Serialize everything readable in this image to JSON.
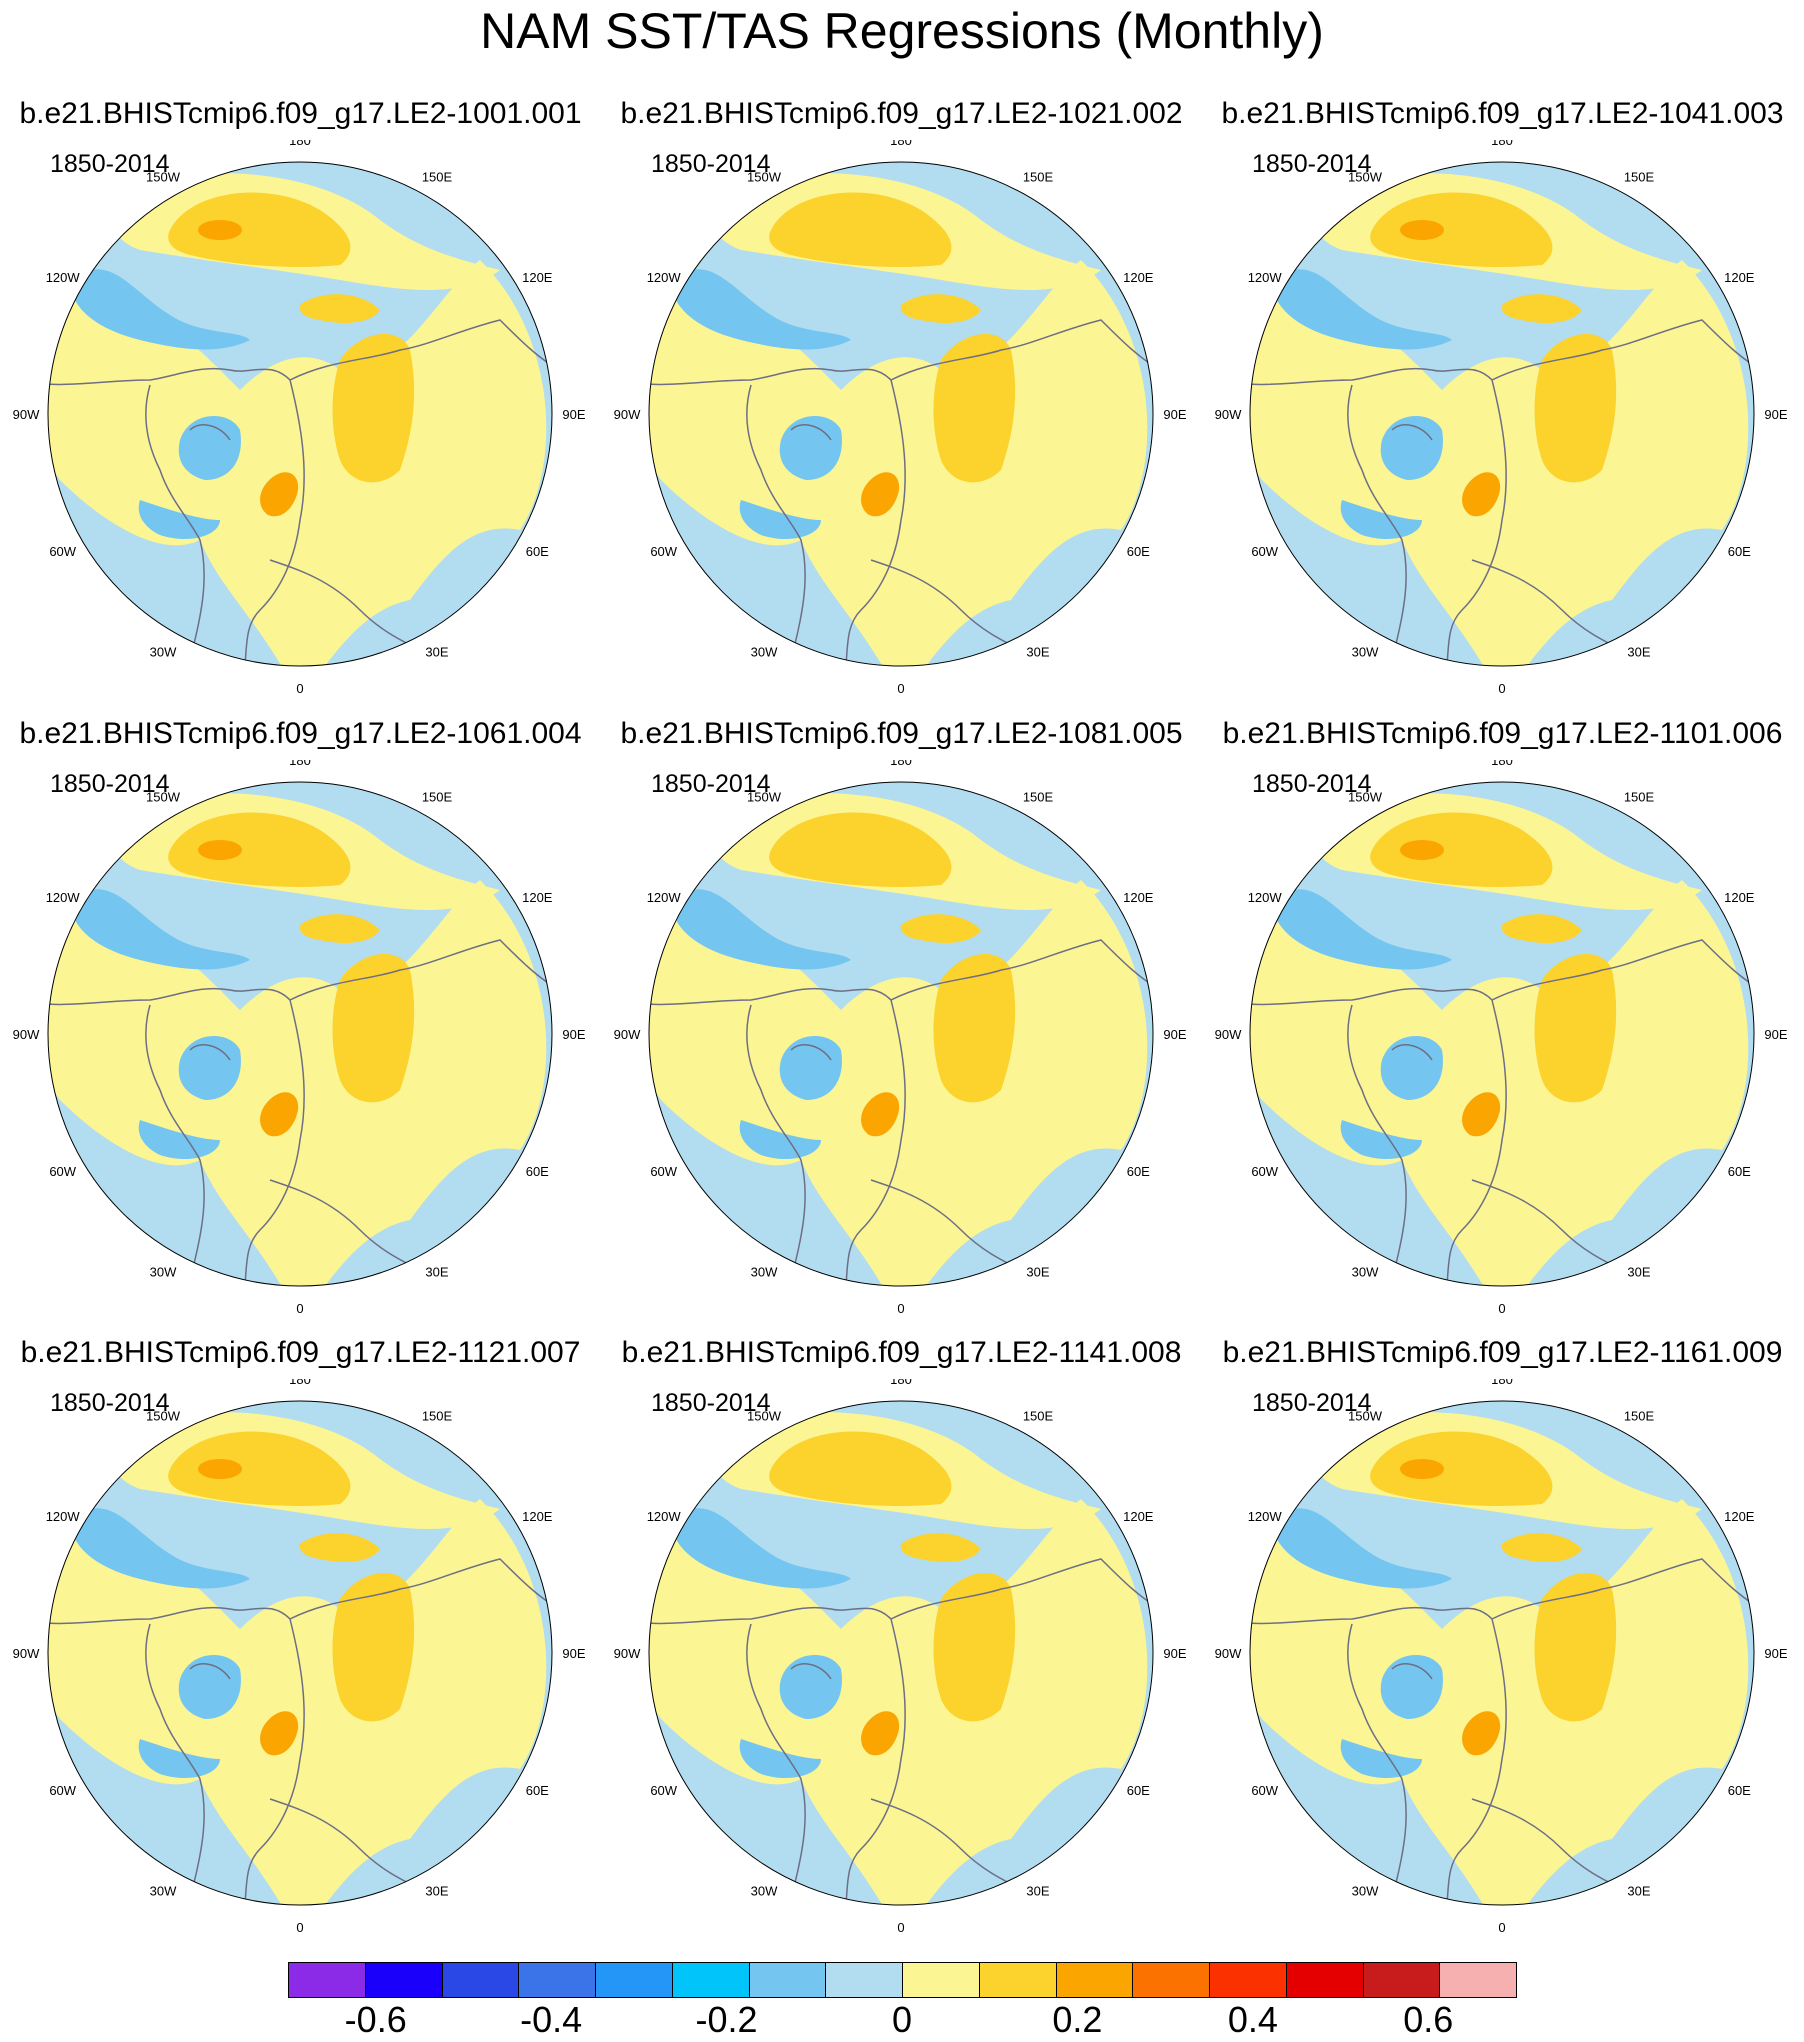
{
  "title": "NAM SST/TAS Regressions (Monthly)",
  "panels": [
    {
      "title": "b.e21.BHISTcmip6.f09_g17.LE2-1001.001",
      "period": "1850-2014"
    },
    {
      "title": "b.e21.BHISTcmip6.f09_g17.LE2-1021.002",
      "period": "1850-2014"
    },
    {
      "title": "b.e21.BHISTcmip6.f09_g17.LE2-1041.003",
      "period": "1850-2014"
    },
    {
      "title": "b.e21.BHISTcmip6.f09_g17.LE2-1061.004",
      "period": "1850-2014"
    },
    {
      "title": "b.e21.BHISTcmip6.f09_g17.LE2-1081.005",
      "period": "1850-2014"
    },
    {
      "title": "b.e21.BHISTcmip6.f09_g17.LE2-1101.006",
      "period": "1850-2014"
    },
    {
      "title": "b.e21.BHISTcmip6.f09_g17.LE2-1121.007",
      "period": "1850-2014"
    },
    {
      "title": "b.e21.BHISTcmip6.f09_g17.LE2-1141.008",
      "period": "1850-2014"
    },
    {
      "title": "b.e21.BHISTcmip6.f09_g17.LE2-1161.009",
      "period": "1850-2014"
    }
  ],
  "longitude_labels": [
    "180",
    "150E",
    "120E",
    "90E",
    "60E",
    "30E",
    "0",
    "30W",
    "60W",
    "90W",
    "120W",
    "150W"
  ],
  "colorbar": {
    "colors": [
      "#8b2be8",
      "#1a00fb",
      "#2a48e6",
      "#3a74e8",
      "#2496f8",
      "#00c4fa",
      "#74c6f0",
      "#b2dcf0",
      "#fbf594",
      "#fcd22c",
      "#fba500",
      "#fb7200",
      "#fb3200",
      "#e40000",
      "#c81c1c",
      "#f7b0b0"
    ],
    "tick_labels": [
      "-0.6",
      "-0.4",
      "-0.2",
      "0",
      "0.2",
      "0.4",
      "0.6"
    ],
    "tick_values": [
      -0.6,
      -0.4,
      -0.2,
      0,
      0.2,
      0.4,
      0.6
    ],
    "levels_min": -0.7,
    "levels_max": 0.7
  },
  "map_colors": {
    "ocean_neg": "#b2dcf0",
    "pos_weak": "#fbf594",
    "pos_mid": "#fcd22c",
    "pos_strong": "#fba500",
    "neg_mid": "#74c6f0",
    "coast": "#6e6e84"
  }
}
